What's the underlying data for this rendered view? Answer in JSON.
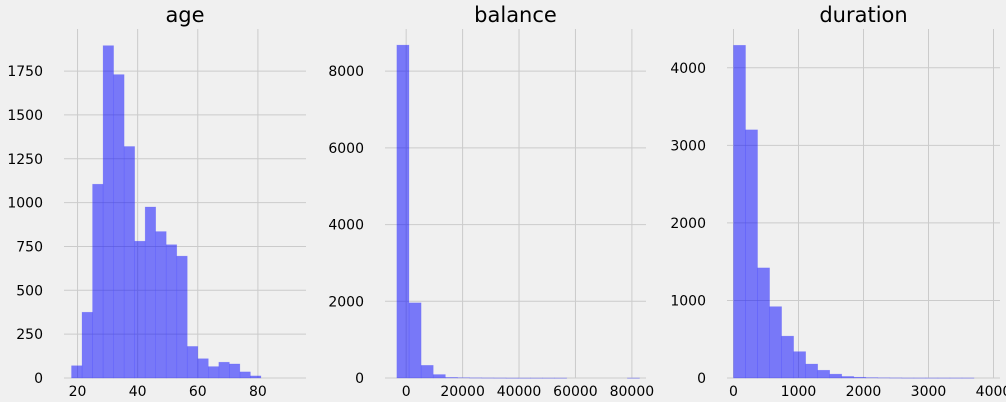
{
  "figure": {
    "background": "#f0f0f0",
    "bar_color": "#0000ff",
    "grid": true
  },
  "chart_data": [
    {
      "type": "bar",
      "title": "age",
      "bin_start": 18,
      "bin_width": 3.5,
      "values": [
        70,
        375,
        1105,
        1895,
        1730,
        1320,
        780,
        975,
        835,
        760,
        695,
        180,
        110,
        65,
        90,
        80,
        35,
        12
      ],
      "xlim": [
        15.5,
        96
      ],
      "ylim": [
        0,
        1990
      ],
      "xticks": [
        20,
        40,
        60,
        80
      ],
      "yticks": [
        0,
        250,
        500,
        750,
        1000,
        1250,
        1500,
        1750
      ],
      "xlabel": "",
      "ylabel": ""
    },
    {
      "type": "bar",
      "title": "balance",
      "bin_start": -3300,
      "bin_width": 4300,
      "values": [
        8680,
        1960,
        330,
        90,
        15,
        8,
        5,
        3,
        2,
        1,
        1,
        1,
        1,
        1,
        0,
        0,
        0,
        0,
        0,
        1
      ],
      "xlim": [
        -7500,
        85000
      ],
      "ylim": [
        0,
        9100
      ],
      "xticks": [
        0,
        20000,
        40000,
        60000,
        80000
      ],
      "yticks": [
        0,
        2000,
        4000,
        6000,
        8000
      ],
      "xlabel": "",
      "ylabel": ""
    },
    {
      "type": "bar",
      "title": "duration",
      "bin_start": 0,
      "bin_width": 185,
      "values": [
        4290,
        3200,
        1420,
        920,
        540,
        340,
        180,
        100,
        50,
        20,
        10,
        5,
        3,
        2,
        1,
        1,
        1,
        1,
        1,
        1
      ],
      "xlim": [
        -100,
        4100
      ],
      "ylim": [
        0,
        4500
      ],
      "xticks": [
        0,
        1000,
        2000,
        3000,
        4000
      ],
      "yticks": [
        0,
        1000,
        2000,
        3000,
        4000
      ],
      "xlabel": "",
      "ylabel": ""
    }
  ]
}
